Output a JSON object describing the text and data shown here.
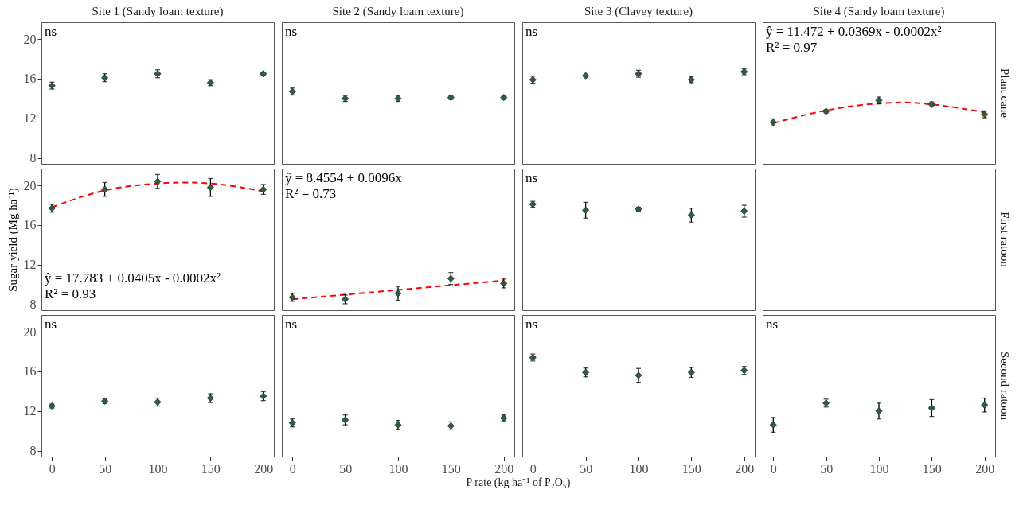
{
  "chart_data": [
    {
      "type": "scatter",
      "title": "Site 1 (Sandy loam texture)",
      "annotations": [
        "ns"
      ],
      "x": [
        0,
        50,
        100,
        150,
        200
      ],
      "xlim": [
        -10,
        210
      ],
      "xticks": [
        0,
        50,
        100,
        150,
        200
      ],
      "ylim": [
        7.4,
        21.7
      ],
      "yticks": [
        8,
        12,
        16,
        20
      ],
      "marker": "diamond",
      "tick_labels": "y",
      "series": [
        {
          "color": "#2e5e3a",
          "values": [
            15.3,
            16.1,
            16.5,
            15.6,
            16.5
          ],
          "errors": [
            0.35,
            0.4,
            0.4,
            0.3,
            0.15
          ]
        }
      ]
    },
    {
      "type": "scatter",
      "title": "Site 2 (Sandy loam texture)",
      "annotations": [
        "ns"
      ],
      "x": [
        0,
        50,
        100,
        150,
        200
      ],
      "xlim": [
        -10,
        210
      ],
      "xticks": [
        0,
        50,
        100,
        150,
        200
      ],
      "ylim": [
        7.4,
        21.7
      ],
      "yticks": [
        8,
        12,
        16,
        20
      ],
      "marker": "diamond",
      "tick_labels": false,
      "series": [
        {
          "color": "#2e5e3a",
          "values": [
            14.7,
            14.0,
            14.0,
            14.1,
            14.1
          ],
          "errors": [
            0.35,
            0.3,
            0.3,
            0.2,
            0.2
          ]
        }
      ]
    },
    {
      "type": "scatter",
      "title": "Site 3 (Clayey texture)",
      "annotations": [
        "ns"
      ],
      "x": [
        0,
        50,
        100,
        150,
        200
      ],
      "xlim": [
        -10,
        210
      ],
      "xticks": [
        0,
        50,
        100,
        150,
        200
      ],
      "ylim": [
        7.4,
        21.7
      ],
      "yticks": [
        8,
        12,
        16,
        20
      ],
      "marker": "diamond",
      "tick_labels": false,
      "series": [
        {
          "color": "#2e5e3a",
          "values": [
            15.9,
            16.3,
            16.5,
            15.9,
            16.7
          ],
          "errors": [
            0.35,
            0.1,
            0.35,
            0.3,
            0.3
          ]
        }
      ]
    },
    {
      "type": "scatter",
      "title": "Site 4 (Sandy loam texture)",
      "y2label": "Plant cane",
      "annotations": [
        "ŷ = 11.472 + 0.0369x - 0.0002x²",
        "R² = 0.97"
      ],
      "x": [
        0,
        50,
        100,
        150,
        200
      ],
      "xlim": [
        -10,
        210
      ],
      "xticks": [
        0,
        50,
        100,
        150,
        200
      ],
      "ylim": [
        7.4,
        21.7
      ],
      "yticks": [
        8,
        12,
        16,
        20
      ],
      "marker": "diamond",
      "tick_labels": false,
      "series": [
        {
          "color": "#2e5e3a",
          "values": [
            11.6,
            12.7,
            13.8,
            13.4,
            12.4
          ],
          "errors": [
            0.35,
            0.15,
            0.35,
            0.25,
            0.35
          ]
        },
        {
          "type": "line",
          "color": "#ff0000",
          "line_style": "dashed",
          "marker": "none",
          "x": [
            0,
            50,
            100,
            125,
            150,
            200
          ],
          "values": [
            11.5,
            12.8,
            13.5,
            13.6,
            13.4,
            12.6
          ]
        }
      ]
    },
    {
      "type": "scatter",
      "ylabel": "Sugar yield (Mg  ha⁻¹)",
      "annotations": [
        "ŷ = 17.783 + 0.0405x - 0.0002x²",
        "R² = 0.93"
      ],
      "x": [
        0,
        50,
        100,
        150,
        200
      ],
      "xlim": [
        -10,
        210
      ],
      "xticks": [
        0,
        50,
        100,
        150,
        200
      ],
      "ylim": [
        7.4,
        21.7
      ],
      "yticks": [
        8,
        12,
        16,
        20
      ],
      "marker": "diamond",
      "tick_labels": "y",
      "series": [
        {
          "color": "#2e5e3a",
          "values": [
            17.7,
            19.6,
            20.4,
            19.8,
            19.6
          ],
          "errors": [
            0.4,
            0.7,
            0.7,
            0.9,
            0.5
          ]
        },
        {
          "type": "line",
          "color": "#ff0000",
          "line_style": "dashed",
          "marker": "none",
          "x": [
            0,
            50,
            100,
            125,
            150,
            200
          ],
          "values": [
            17.8,
            19.5,
            20.2,
            20.3,
            20.2,
            19.4
          ]
        }
      ]
    },
    {
      "type": "scatter",
      "annotations": [
        "ŷ = 8.4554 + 0.0096x",
        "R² = 0.73"
      ],
      "x": [
        0,
        50,
        100,
        150,
        200
      ],
      "xlim": [
        -10,
        210
      ],
      "xticks": [
        0,
        50,
        100,
        150,
        200
      ],
      "ylim": [
        7.4,
        21.7
      ],
      "yticks": [
        8,
        12,
        16,
        20
      ],
      "marker": "diamond",
      "tick_labels": false,
      "series": [
        {
          "color": "#2e5e3a",
          "values": [
            8.7,
            8.5,
            9.1,
            10.6,
            10.1
          ],
          "errors": [
            0.4,
            0.45,
            0.7,
            0.6,
            0.45
          ]
        },
        {
          "type": "line",
          "color": "#ff0000",
          "line_style": "dashed",
          "marker": "none",
          "x": [
            0,
            200
          ],
          "values": [
            8.5,
            10.4
          ]
        }
      ]
    },
    {
      "type": "scatter",
      "annotations": [
        "ns"
      ],
      "x": [
        0,
        50,
        100,
        150,
        200
      ],
      "xlim": [
        -10,
        210
      ],
      "xticks": [
        0,
        50,
        100,
        150,
        200
      ],
      "ylim": [
        7.4,
        21.7
      ],
      "yticks": [
        8,
        12,
        16,
        20
      ],
      "marker": "diamond",
      "tick_labels": false,
      "series": [
        {
          "color": "#2e5e3a",
          "values": [
            18.1,
            17.5,
            17.6,
            17.0,
            17.4
          ],
          "errors": [
            0.3,
            0.8,
            0.2,
            0.7,
            0.6
          ]
        }
      ]
    },
    {
      "type": "other",
      "y2label": "First ratoon"
    },
    {
      "type": "scatter",
      "annotations": [
        "ns"
      ],
      "x": [
        0,
        50,
        100,
        150,
        200
      ],
      "xlim": [
        -10,
        210
      ],
      "xticks": [
        0,
        50,
        100,
        150,
        200
      ],
      "ylim": [
        7.4,
        21.7
      ],
      "yticks": [
        8,
        12,
        16,
        20
      ],
      "marker": "diamond",
      "series": [
        {
          "color": "#2e5e3a",
          "values": [
            12.5,
            13.0,
            12.9,
            13.3,
            13.5
          ],
          "errors": [
            0.2,
            0.25,
            0.4,
            0.45,
            0.45
          ]
        }
      ]
    },
    {
      "type": "scatter",
      "xlabel": "P rate (kg ha⁻¹ of P₂O₅)",
      "annotations": [
        "ns"
      ],
      "x": [
        0,
        50,
        100,
        150,
        200
      ],
      "xlim": [
        -10,
        210
      ],
      "xticks": [
        0,
        50,
        100,
        150,
        200
      ],
      "ylim": [
        7.4,
        21.7
      ],
      "yticks": [
        8,
        12,
        16,
        20
      ],
      "marker": "diamond",
      "tick_labels": "x",
      "series": [
        {
          "color": "#2e5e3a",
          "values": [
            10.8,
            11.1,
            10.6,
            10.5,
            11.3
          ],
          "errors": [
            0.4,
            0.5,
            0.45,
            0.4,
            0.3
          ]
        }
      ]
    },
    {
      "type": "scatter",
      "annotations": [
        "ns"
      ],
      "x": [
        0,
        50,
        100,
        150,
        200
      ],
      "xlim": [
        -10,
        210
      ],
      "xticks": [
        0,
        50,
        100,
        150,
        200
      ],
      "ylim": [
        7.4,
        21.7
      ],
      "yticks": [
        8,
        12,
        16,
        20
      ],
      "marker": "diamond",
      "tick_labels": "x",
      "series": [
        {
          "color": "#2e5e3a",
          "values": [
            17.4,
            15.9,
            15.6,
            15.9,
            16.1
          ],
          "errors": [
            0.35,
            0.45,
            0.7,
            0.5,
            0.4
          ]
        }
      ]
    },
    {
      "type": "scatter",
      "y2label": "Second ratoon",
      "annotations": [
        "ns"
      ],
      "x": [
        0,
        50,
        100,
        150,
        200
      ],
      "xlim": [
        -10,
        210
      ],
      "xticks": [
        0,
        50,
        100,
        150,
        200
      ],
      "ylim": [
        7.4,
        21.7
      ],
      "yticks": [
        8,
        12,
        16,
        20
      ],
      "marker": "diamond",
      "tick_labels": "x",
      "series": [
        {
          "color": "#2e5e3a",
          "values": [
            10.6,
            12.8,
            12.0,
            12.3,
            12.6
          ],
          "errors": [
            0.75,
            0.4,
            0.8,
            0.85,
            0.7
          ]
        }
      ]
    }
  ]
}
